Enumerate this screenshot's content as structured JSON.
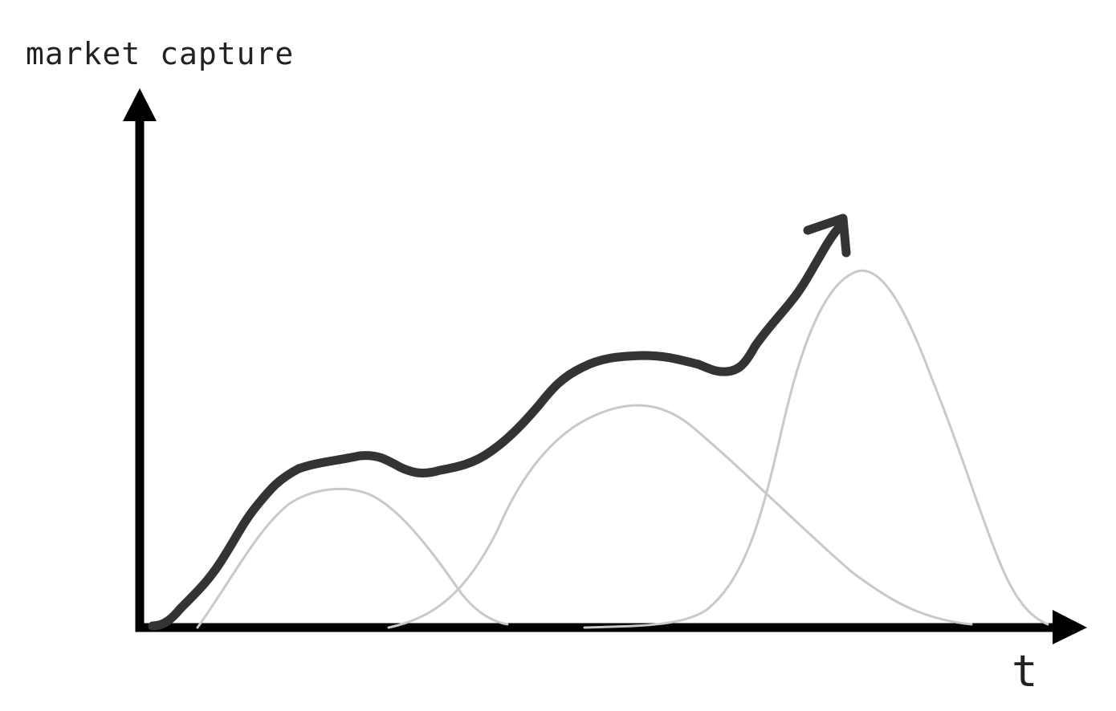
{
  "diagram": {
    "y_axis_label": "market capture",
    "x_axis_label": "t",
    "colors": {
      "axes": "#000000",
      "total_curve": "#333333",
      "component_curves": "#c9c9c9",
      "background": "#ffffff"
    },
    "curves": [
      {
        "role": "component"
      },
      {
        "role": "component"
      },
      {
        "role": "component"
      },
      {
        "role": "total",
        "arrowhead": true
      }
    ]
  }
}
